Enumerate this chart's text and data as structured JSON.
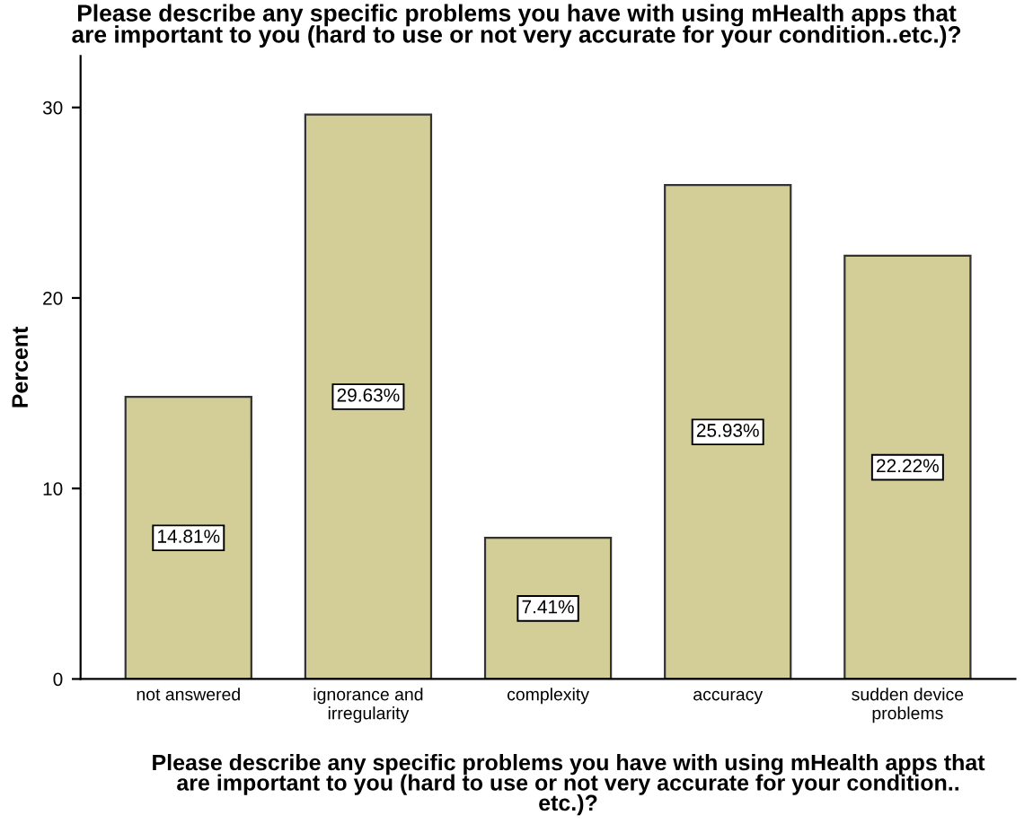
{
  "chart_data": {
    "type": "bar",
    "title": "Please describe any specific problems you have with using mHealth apps that\nare important to you (hard to use or not very accurate for your condition..etc.)?",
    "xlabel": "Please describe any specific problems you have with using mHealth apps that\nare important to you (hard to use or not very accurate for your condition..\netc.)?",
    "ylabel": "Percent",
    "categories": [
      "not answered",
      "ignorance and\nirregularity",
      "complexity",
      "accuracy",
      "sudden device\nproblems"
    ],
    "values": [
      14.81,
      29.63,
      7.41,
      25.93,
      22.22
    ],
    "value_labels": [
      "14.81%",
      "29.63%",
      "7.41%",
      "25.93%",
      "22.22%"
    ],
    "color": "#d3ce97",
    "ylim": [
      0,
      32.7
    ],
    "yticks": [
      0,
      10,
      20,
      30
    ],
    "grid": false
  }
}
